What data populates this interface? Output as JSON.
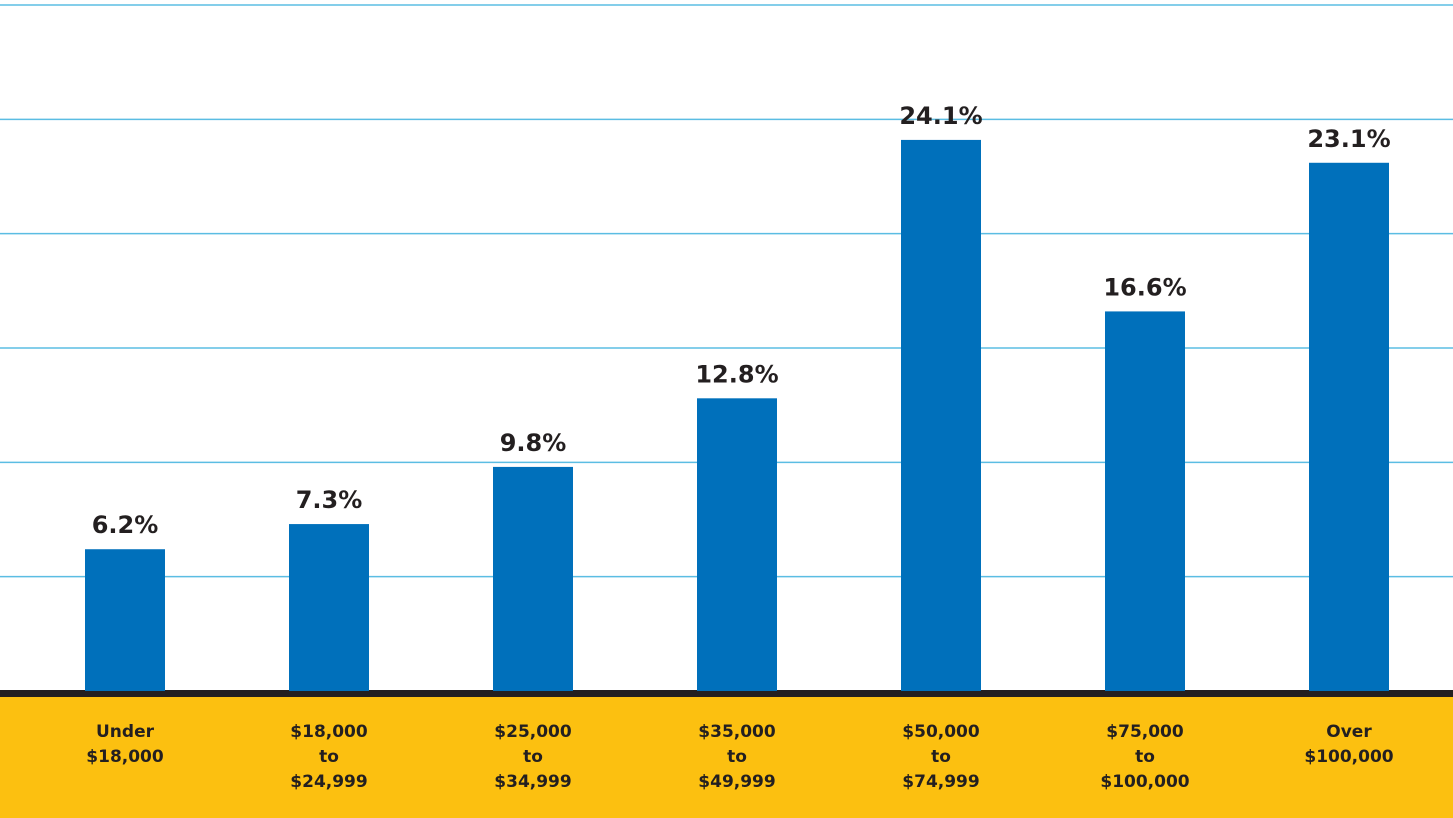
{
  "chart_data": {
    "type": "bar",
    "categories": [
      "Under\n$18,000",
      "$18,000\nto\n$24,999",
      "$25,000\nto\n$34,999",
      "$35,000\nto\n$49,999",
      "$50,000\nto\n$74,999",
      "$75,000\nto\n$100,000",
      "Over\n$100,000"
    ],
    "values": [
      6.2,
      7.3,
      9.8,
      12.8,
      24.1,
      16.6,
      23.1
    ],
    "value_labels": [
      "6.2%",
      "7.3%",
      "9.8%",
      "12.8%",
      "24.1%",
      "16.6%",
      "23.1%"
    ],
    "color": "#0070bb",
    "ylim": [
      0,
      30
    ],
    "yticks": [
      5,
      10,
      15,
      20,
      25,
      30
    ],
    "grid": true
  }
}
